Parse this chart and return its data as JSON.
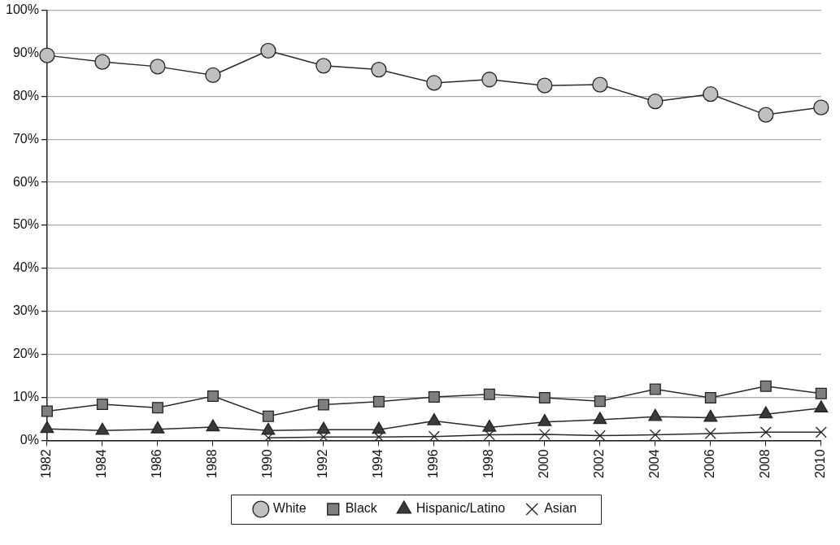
{
  "chart_data": {
    "type": "line",
    "categories": [
      "1982",
      "1984",
      "1986",
      "1988",
      "1990",
      "1992",
      "1994",
      "1996",
      "1998",
      "2000",
      "2002",
      "2004",
      "2006",
      "2008",
      "2010"
    ],
    "series": [
      {
        "name": "White",
        "color": "#c0c0c2",
        "marker": "circle",
        "values": [
          89.5,
          88.0,
          86.9,
          84.9,
          90.6,
          87.1,
          86.2,
          83.1,
          83.9,
          82.5,
          82.7,
          78.8,
          80.5,
          75.7,
          77.4
        ]
      },
      {
        "name": "Black",
        "color": "#7f7f80",
        "marker": "square",
        "values": [
          6.8,
          8.4,
          7.6,
          10.3,
          5.6,
          8.3,
          9.0,
          10.1,
          10.7,
          9.9,
          9.1,
          11.9,
          9.9,
          12.6,
          10.9
        ]
      },
      {
        "name": "Hispanic/Latino",
        "color": "#3a3a3a",
        "marker": "triangle",
        "values": [
          2.7,
          2.3,
          2.6,
          3.1,
          2.3,
          2.5,
          2.5,
          4.5,
          3.0,
          4.3,
          4.8,
          5.5,
          5.3,
          6.1,
          7.5
        ]
      },
      {
        "name": "Asian",
        "color": "#222222",
        "marker": "cross",
        "values": [
          null,
          null,
          null,
          null,
          0.6,
          0.8,
          0.8,
          0.9,
          1.3,
          1.4,
          1.1,
          1.3,
          1.6,
          1.9,
          1.9
        ]
      }
    ],
    "ylim": [
      0,
      100
    ],
    "yticks": [
      {
        "value": 0,
        "label": "0%"
      },
      {
        "value": 10,
        "label": "10%"
      },
      {
        "value": 20,
        "label": "20%"
      },
      {
        "value": 30,
        "label": "30%"
      },
      {
        "value": 40,
        "label": "40%"
      },
      {
        "value": 50,
        "label": "50%"
      },
      {
        "value": 60,
        "label": "60%"
      },
      {
        "value": 70,
        "label": "70%"
      },
      {
        "value": 80,
        "label": "80%"
      },
      {
        "value": 90,
        "label": "90%"
      },
      {
        "value": 100,
        "label": "100%"
      }
    ],
    "grid": "y",
    "legend": "bottom",
    "line_style": "solid"
  }
}
